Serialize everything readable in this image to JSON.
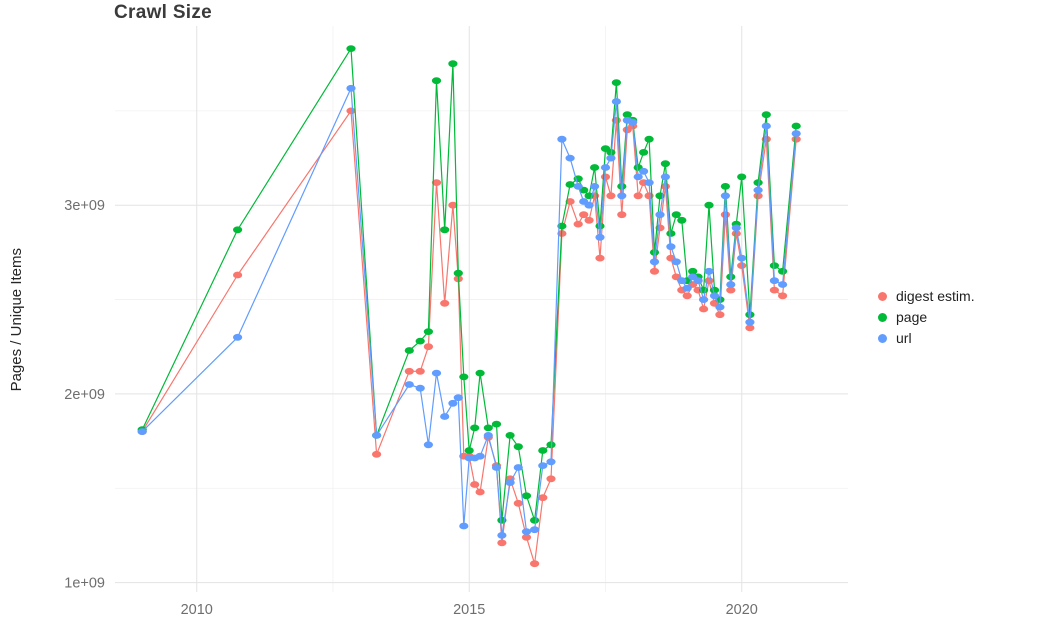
{
  "chart_data": {
    "type": "line",
    "title": "Crawl Size",
    "xlabel": "",
    "ylabel": "Pages / Unique Items",
    "y_unit": "values are in units of 1e+09 (billions)",
    "xlim": [
      2008.5,
      2021.95
    ],
    "ylim": [
      0.95,
      3.95
    ],
    "grid": {
      "on": true,
      "minor_x": [
        2012.5,
        2017.5
      ],
      "minor_y": [
        1.5,
        2.5,
        3.5
      ]
    },
    "legend_position": "right",
    "x_ticks": [
      {
        "label": "2010",
        "value": 2010
      },
      {
        "label": "2015",
        "value": 2015
      },
      {
        "label": "2020",
        "value": 2020
      }
    ],
    "y_ticks": [
      {
        "label": "1e+09",
        "value": 1
      },
      {
        "label": "2e+09",
        "value": 2
      },
      {
        "label": "3e+09",
        "value": 3
      }
    ],
    "x": [
      2009.0,
      2010.75,
      2012.83,
      2013.3,
      2013.9,
      2014.1,
      2014.25,
      2014.4,
      2014.55,
      2014.7,
      2014.8,
      2014.9,
      2015.0,
      2015.1,
      2015.2,
      2015.35,
      2015.5,
      2015.6,
      2015.75,
      2015.9,
      2016.05,
      2016.2,
      2016.35,
      2016.5,
      2016.7,
      2016.85,
      2017.0,
      2017.1,
      2017.2,
      2017.3,
      2017.4,
      2017.5,
      2017.6,
      2017.7,
      2017.8,
      2017.9,
      2018.0,
      2018.1,
      2018.2,
      2018.3,
      2018.4,
      2018.5,
      2018.6,
      2018.7,
      2018.8,
      2018.9,
      2019.0,
      2019.1,
      2019.2,
      2019.3,
      2019.4,
      2019.5,
      2019.6,
      2019.7,
      2019.8,
      2019.9,
      2020.0,
      2020.15,
      2020.3,
      2020.45,
      2020.6,
      2020.75,
      2021.0
    ],
    "series": [
      {
        "key": "digest",
        "name": "digest estim.",
        "color": "#F8766D",
        "values": [
          1.8,
          2.63,
          3.5,
          1.68,
          2.12,
          2.12,
          2.25,
          3.12,
          2.48,
          3.0,
          2.61,
          1.67,
          1.67,
          1.52,
          1.48,
          1.77,
          1.62,
          1.21,
          1.55,
          1.42,
          1.24,
          1.1,
          1.45,
          1.55,
          2.85,
          3.02,
          2.9,
          2.95,
          2.92,
          3.05,
          2.72,
          3.15,
          3.05,
          3.45,
          2.95,
          3.4,
          3.42,
          3.05,
          3.12,
          3.05,
          2.65,
          2.88,
          3.1,
          2.72,
          2.62,
          2.55,
          2.52,
          2.58,
          2.55,
          2.45,
          2.6,
          2.48,
          2.42,
          2.95,
          2.55,
          2.85,
          2.68,
          2.35,
          3.05,
          3.35,
          2.55,
          2.52,
          3.35
        ]
      },
      {
        "key": "page",
        "name": "page",
        "color": "#00BA38",
        "values": [
          1.81,
          2.87,
          3.83,
          1.78,
          2.23,
          2.28,
          2.33,
          3.66,
          2.87,
          3.75,
          2.64,
          2.09,
          1.7,
          1.82,
          2.11,
          1.82,
          1.84,
          1.33,
          1.78,
          1.72,
          1.46,
          1.33,
          1.7,
          1.73,
          2.89,
          3.11,
          3.14,
          3.08,
          3.05,
          3.2,
          2.89,
          3.3,
          3.28,
          3.65,
          3.1,
          3.48,
          3.45,
          3.2,
          3.28,
          3.35,
          2.75,
          3.05,
          3.22,
          2.85,
          2.95,
          2.92,
          2.6,
          2.65,
          2.62,
          2.55,
          3.0,
          2.55,
          2.5,
          3.1,
          2.62,
          2.9,
          3.15,
          2.42,
          3.12,
          3.48,
          2.68,
          2.65,
          3.42
        ]
      },
      {
        "key": "url",
        "name": "url",
        "color": "#619CFF",
        "values": [
          1.8,
          2.3,
          3.62,
          1.78,
          2.05,
          2.03,
          1.73,
          2.11,
          1.88,
          1.95,
          1.98,
          1.3,
          1.66,
          1.66,
          1.67,
          1.78,
          1.61,
          1.25,
          1.53,
          1.61,
          1.27,
          1.28,
          1.62,
          1.64,
          3.35,
          3.25,
          3.1,
          3.02,
          3.0,
          3.1,
          2.83,
          3.2,
          3.25,
          3.55,
          3.05,
          3.45,
          3.44,
          3.15,
          3.18,
          3.12,
          2.7,
          2.95,
          3.15,
          2.78,
          2.7,
          2.6,
          2.56,
          2.62,
          2.6,
          2.5,
          2.65,
          2.52,
          2.46,
          3.05,
          2.58,
          2.88,
          2.72,
          2.38,
          3.08,
          3.42,
          2.6,
          2.58,
          3.38
        ]
      }
    ]
  },
  "style": {
    "grid_major_color": "#e3e3e3",
    "grid_minor_color": "#f1f1f1",
    "tick_label_color": "#6e6e6e"
  }
}
